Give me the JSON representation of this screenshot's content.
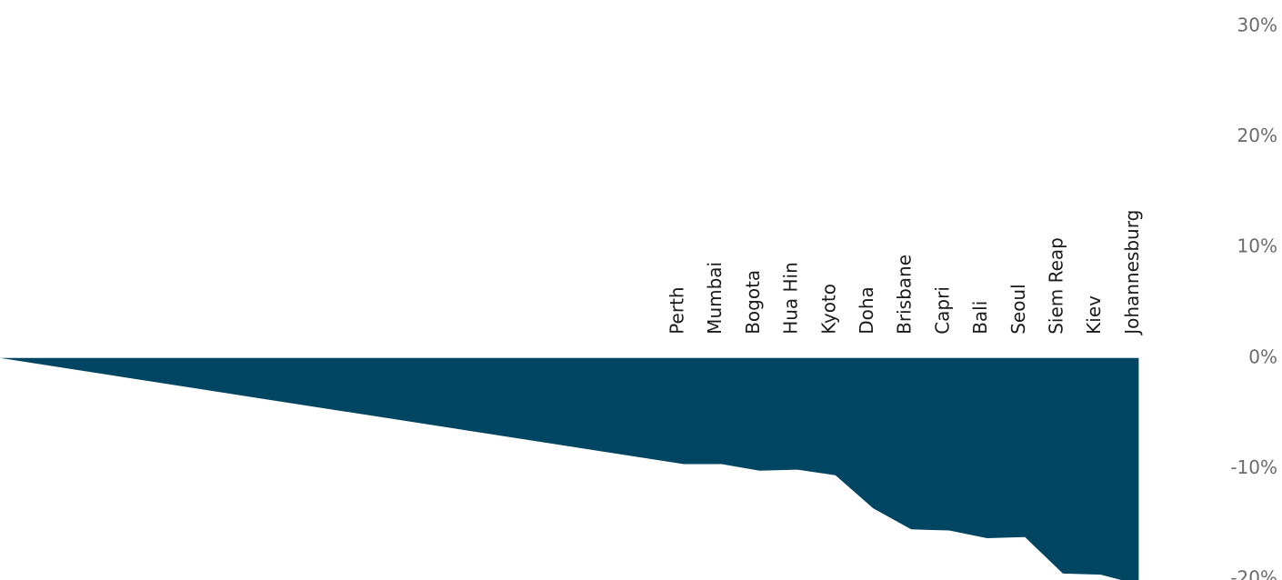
{
  "chart_data": {
    "type": "area",
    "title": "",
    "xlabel": "",
    "ylabel": "",
    "ylim": [
      -20,
      30
    ],
    "yticks": [
      30,
      20,
      10,
      0,
      -10,
      -20
    ],
    "ytick_labels": [
      "30%",
      "20%",
      "10%",
      "0%",
      "-10%",
      "-20%"
    ],
    "y_axis_side": "right",
    "grid": false,
    "categories": [
      "Perth",
      "Mumbai",
      "Bogota",
      "Hua Hin",
      "Kyoto",
      "Doha",
      "Brisbane",
      "Capri",
      "Bali",
      "Seoul",
      "Siem Reap",
      "Kiev",
      "Johannesburg"
    ],
    "values": [
      -9.6,
      -9.6,
      -10.2,
      -10.1,
      -10.6,
      -13.6,
      -15.5,
      -15.6,
      -16.3,
      -16.2,
      -19.5,
      -19.6,
      -20.5
    ],
    "color": "#004562",
    "label_color": "#1a1a1a",
    "tick_color": "#6b6b6b"
  }
}
